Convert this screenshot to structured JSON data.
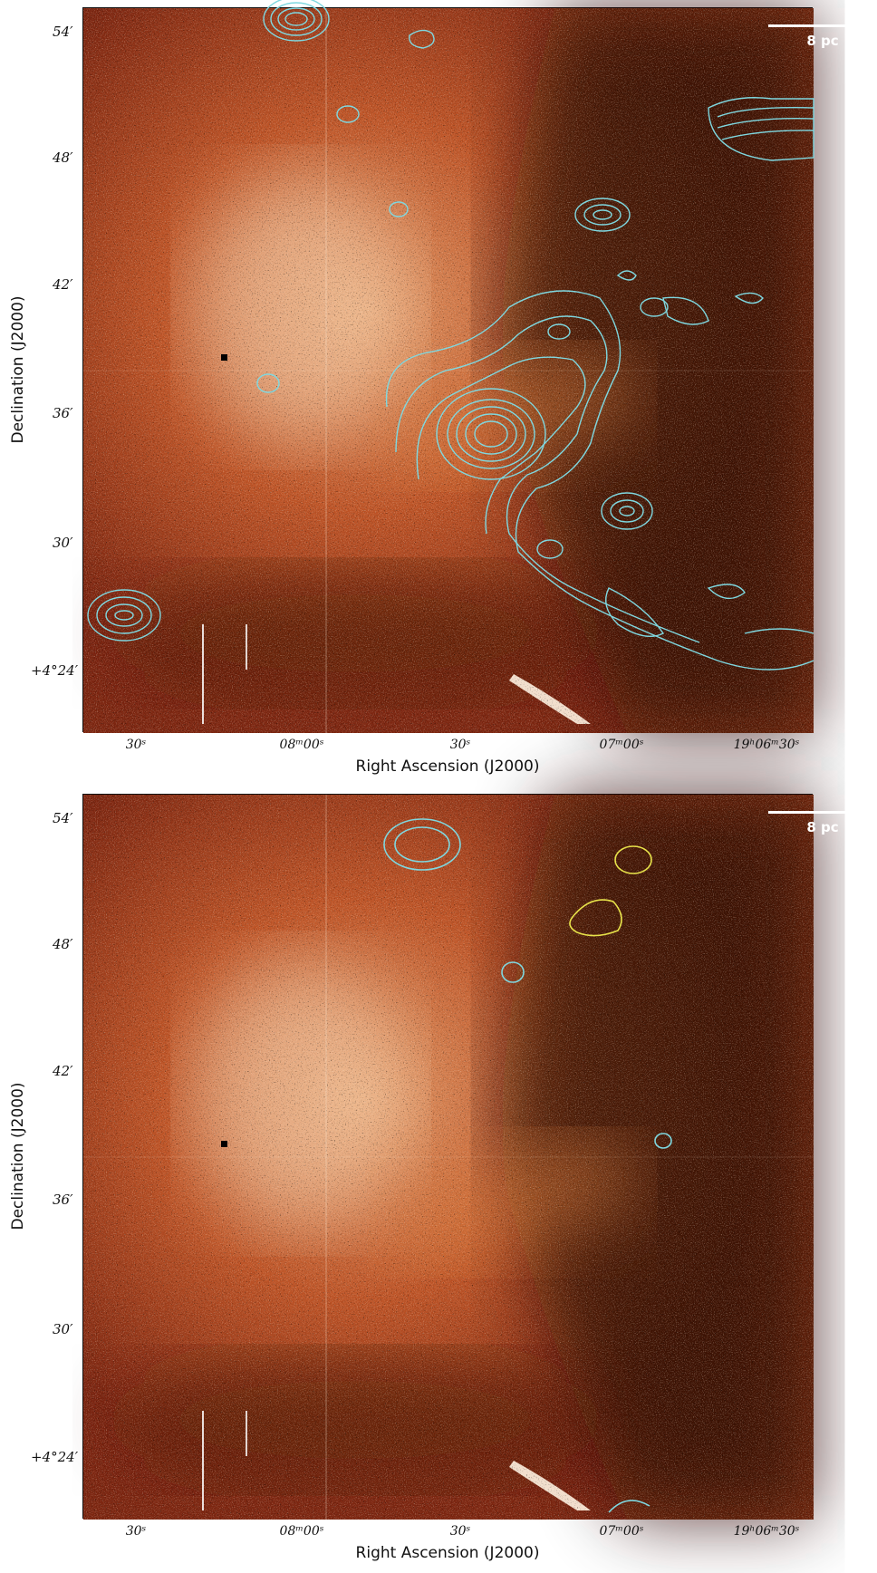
{
  "panels": [
    {
      "id": "top",
      "xlabel": "Right Ascension (J2000)",
      "ylabel": "Declination (J2000)",
      "scale_bar": "8 pc",
      "yticks": [
        "54′",
        "48′",
        "42′",
        "36′",
        "30′",
        "+4°24′"
      ],
      "xticks": [
        "30ˢ",
        "08ᵐ00ˢ",
        "30ˢ",
        "07ᵐ00ˢ",
        "19ʰ06ᵐ30ˢ"
      ],
      "contour_color": "#7fd8e0"
    },
    {
      "id": "bottom",
      "xlabel": "Right Ascension (J2000)",
      "ylabel": "Declination (J2000)",
      "scale_bar": "8 pc",
      "yticks": [
        "54′",
        "48′",
        "42′",
        "36′",
        "30′",
        "+4°24′"
      ],
      "xticks": [
        "30ˢ",
        "08ᵐ00ˢ",
        "30ˢ",
        "07ᵐ00ˢ",
        "19ʰ06ᵐ30ˢ"
      ],
      "contour_colors": [
        "#7fd8e0",
        "#e8e34a"
      ]
    }
  ]
}
